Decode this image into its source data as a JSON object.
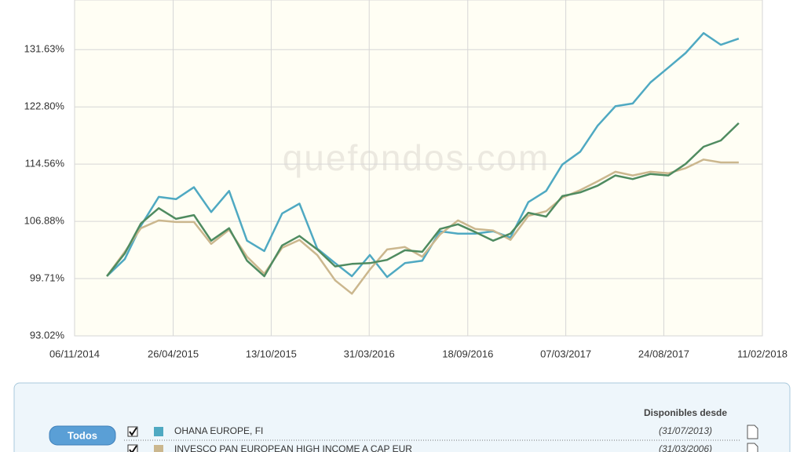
{
  "chart_data": {
    "type": "line",
    "watermark": "quefondos.com",
    "log_scale": true,
    "grid": true,
    "x": [
      "01/01/2015",
      "01/02/2015",
      "01/03/2015",
      "01/04/2015",
      "01/05/2015",
      "01/06/2015",
      "01/07/2015",
      "01/08/2015",
      "01/09/2015",
      "01/10/2015",
      "01/11/2015",
      "01/12/2015",
      "01/01/2016",
      "01/02/2016",
      "01/03/2016",
      "01/04/2016",
      "01/05/2016",
      "01/06/2016",
      "01/07/2016",
      "01/08/2016",
      "01/09/2016",
      "01/10/2016",
      "01/11/2016",
      "01/12/2016",
      "01/01/2017",
      "01/02/2017",
      "01/03/2017",
      "01/04/2017",
      "01/05/2017",
      "01/06/2017",
      "01/07/2017",
      "01/08/2017",
      "01/09/2017",
      "01/10/2017",
      "01/11/2017",
      "01/12/2017",
      "01/01/2018"
    ],
    "xlim": [
      "06/11/2014",
      "11/02/2018"
    ],
    "xticks": [
      "06/11/2014",
      "26/04/2015",
      "13/10/2015",
      "31/03/2016",
      "18/09/2016",
      "07/03/2017",
      "24/08/2017",
      "11/02/2018"
    ],
    "ylim": [
      93.02,
      139.8
    ],
    "yticks": [
      {
        "value": 93.02,
        "label": "93.02%"
      },
      {
        "value": 99.71,
        "label": "99.71%"
      },
      {
        "value": 106.88,
        "label": "106.88%"
      },
      {
        "value": 114.56,
        "label": "114.56%"
      },
      {
        "value": 122.8,
        "label": "122.80%"
      },
      {
        "value": 131.63,
        "label": "131.63%"
      }
    ],
    "series": [
      {
        "name": "OHANA EUROPE, FI",
        "color": "#4fa9c2",
        "values": [
          100.0,
          102.1,
          106.3,
          110.1,
          109.8,
          111.4,
          108.1,
          110.9,
          104.4,
          103.1,
          107.9,
          109.2,
          103.4,
          101.6,
          100.0,
          102.6,
          99.9,
          101.6,
          101.9,
          105.6,
          105.3,
          105.3,
          105.6,
          104.8,
          109.4,
          110.9,
          114.5,
          116.3,
          120.0,
          122.9,
          123.3,
          126.5,
          128.8,
          131.1,
          134.3,
          132.4,
          133.4
        ]
      },
      {
        "name": "INVESCO PAN EUROPEAN HIGH INCOME A CAP EUR",
        "color": "#cbb78e",
        "values": [
          100.0,
          103.0,
          106.0,
          107.0,
          106.8,
          106.8,
          104.0,
          105.8,
          102.4,
          100.3,
          103.5,
          104.5,
          102.6,
          99.5,
          97.9,
          100.8,
          103.3,
          103.6,
          102.4,
          105.2,
          107.0,
          105.9,
          105.7,
          104.5,
          107.6,
          108.2,
          110.0,
          111.0,
          112.2,
          113.5,
          113.0,
          113.5,
          113.3,
          114.0,
          115.2,
          114.8,
          114.8
        ]
      },
      {
        "color": "#4f8b60",
        "values": [
          100.0,
          102.8,
          106.6,
          108.6,
          107.2,
          107.7,
          104.4,
          106.0,
          101.9,
          100.0,
          103.8,
          105.0,
          103.3,
          101.2,
          101.5,
          101.6,
          102.0,
          103.2,
          103.0,
          105.9,
          106.5,
          105.5,
          104.4,
          105.3,
          108.0,
          107.5,
          110.2,
          110.7,
          111.6,
          113.0,
          112.5,
          113.2,
          113.0,
          114.6,
          117.0,
          117.9,
          120.4
        ]
      }
    ]
  },
  "panel": {
    "button": "Todos",
    "header": "Disponibles desde",
    "rows": [
      {
        "since": "(31/07/2013)"
      },
      {
        "since": "(31/03/2006)"
      }
    ]
  }
}
